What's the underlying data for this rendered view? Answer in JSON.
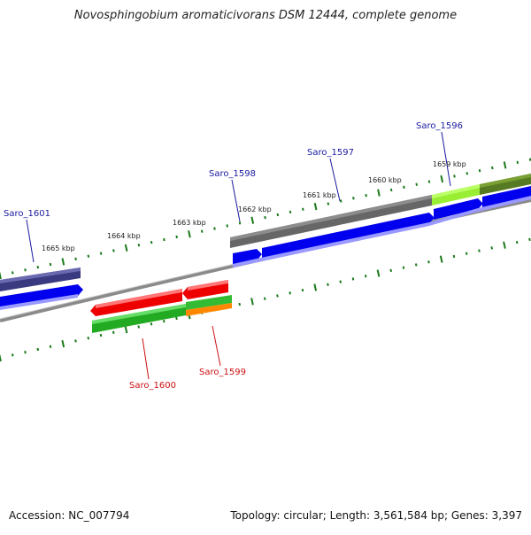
{
  "title": "Novosphingobium aromaticivorans DSM 12444, complete genome",
  "footer": {
    "accession": "Accession: NC_007794",
    "summary": "Topology: circular; Length: 3,561,584 bp; Genes: 3,397"
  },
  "ruler_labels": [
    "1659 kbp",
    "1660 kbp",
    "1661 kbp",
    "1662 kbp",
    "1663 kbp",
    "1664 kbp",
    "1665 kbp"
  ],
  "genes_top": [
    "Saro_1596",
    "Saro_1597",
    "Saro_1598",
    "Saro_1601"
  ],
  "genes_bottom": [
    "Saro_1599",
    "Saro_1600"
  ],
  "colors": {
    "forward_gene": "#0000ee",
    "reverse_gene": "#ee0000",
    "label_forward": "#1a1aa0",
    "label_reverse": "#cc1111",
    "tick": "#1a7a1a",
    "backbone": "#8a8a8a"
  }
}
